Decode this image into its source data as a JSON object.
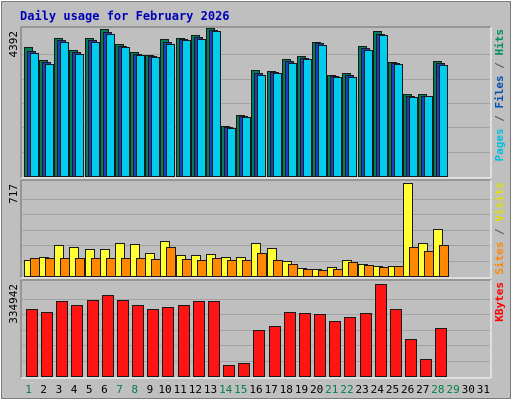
{
  "chart_data": {
    "type": "bar",
    "title": "Daily usage for February 2026",
    "days": [
      "1",
      "2",
      "3",
      "4",
      "5",
      "6",
      "7",
      "8",
      "9",
      "10",
      "11",
      "12",
      "13",
      "14",
      "15",
      "16",
      "17",
      "18",
      "19",
      "20",
      "21",
      "22",
      "23",
      "24",
      "25",
      "26",
      "27",
      "28",
      "29",
      "30",
      "31"
    ],
    "weekend_days": [
      "1",
      "7",
      "8",
      "14",
      "15",
      "21",
      "22",
      "28",
      "29"
    ],
    "panels": [
      {
        "id": "hits",
        "ymax_label": "4392",
        "ymax": 4392,
        "legend": [
          {
            "text": "Pages",
            "color": "#00c0e0"
          },
          {
            "text": " / ",
            "color": "#555555"
          },
          {
            "text": "Files",
            "color": "#0050b0"
          },
          {
            "text": " / ",
            "color": "#555555"
          },
          {
            "text": "Hits",
            "color": "#009060"
          }
        ],
        "series": [
          {
            "name": "Hits",
            "color": "#00805a",
            "values": [
              3880,
              3490,
              4160,
              3800,
              4150,
              4420,
              3980,
              3720,
              3640,
              4110,
              4160,
              4240,
              4440,
              1510,
              1830,
              3180,
              3170,
              3520,
              3600,
              4030,
              3040,
              3110,
              3920,
              4370,
              3440,
              2460,
              2460,
              3450,
              null,
              null,
              null
            ]
          },
          {
            "name": "Files",
            "color": "#1a3fc0",
            "values": [
              3760,
              3420,
              4090,
              3740,
              4100,
              4340,
              3920,
              3680,
              3610,
              4020,
              4120,
              4180,
              4400,
              1470,
              1790,
              3110,
              3120,
              3470,
              3560,
              3990,
              3000,
              3050,
              3850,
              4280,
              3410,
              2420,
              2420,
              3400,
              null,
              null,
              null
            ]
          },
          {
            "name": "Pages",
            "color": "#00ccee",
            "values": [
              3690,
              3380,
              4030,
              3680,
              4040,
              4280,
              3870,
              3640,
              3580,
              3960,
              4080,
              4120,
              4370,
              1450,
              1760,
              3050,
              3090,
              3410,
              3510,
              3950,
              2970,
              2990,
              3800,
              4230,
              3380,
              2390,
              2400,
              3340,
              null,
              null,
              null
            ]
          }
        ]
      },
      {
        "id": "visits",
        "ymax_label": "717",
        "ymax": 717,
        "legend": [
          {
            "text": "Sites",
            "color": "#ff8800"
          },
          {
            "text": " / ",
            "color": "#555555"
          },
          {
            "text": "Visits",
            "color": "#e0e000"
          }
        ],
        "series": [
          {
            "name": "Visits",
            "color": "#ffff33",
            "values": [
              125,
              148,
              238,
              225,
              205,
              210,
              252,
              250,
              175,
              268,
              160,
              160,
              172,
              150,
              145,
              258,
              218,
              118,
              60,
              55,
              70,
              120,
              90,
              75,
              75,
              717,
              256,
              363,
              null,
              null,
              null
            ]
          },
          {
            "name": "Sites",
            "color": "#ff8800",
            "values": [
              135,
              135,
              135,
              135,
              140,
              140,
              135,
              138,
              132,
              226,
              128,
              122,
              140,
              120,
              122,
              180,
              120,
              95,
              52,
              48,
              55,
              105,
              82,
              72,
              75,
              220,
              190,
              240,
              null,
              null,
              null
            ]
          }
        ]
      },
      {
        "id": "kbytes",
        "ymax_label": "334942",
        "ymax": 334942,
        "legend": [
          {
            "text": "KBytes",
            "color": "#ff0000"
          }
        ],
        "series": [
          {
            "name": "KBytes",
            "color": "#ff1414",
            "values": [
              243000,
              229000,
              271000,
              256000,
              272000,
              291000,
              273000,
              257000,
              241000,
              249000,
              256000,
              269000,
              269000,
              40000,
              48000,
              167000,
              180000,
              231000,
              228000,
              222000,
              198000,
              212000,
              226000,
              330000,
              243000,
              134000,
              63000,
              173000,
              null,
              null,
              null
            ]
          }
        ]
      }
    ]
  }
}
